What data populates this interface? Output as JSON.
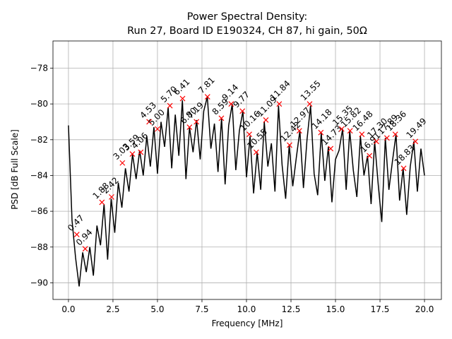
{
  "chart_data": {
    "type": "line",
    "title": "Power Spectral Density:",
    "subtitle": "Run 27, Board ID E190324, CH 87, hi gain, 50Ω",
    "xlabel": "Frequency [MHz]",
    "ylabel": "PSD [dB Full Scale]",
    "color": "#000000",
    "grid": true,
    "xlim": [
      -0.87,
      20.95
    ],
    "ylim": [
      -90.93,
      -76.48
    ],
    "xticks": [
      {
        "value": 0,
        "label": "0.0"
      },
      {
        "value": 2.5,
        "label": "2.5"
      },
      {
        "value": 5,
        "label": "5.0"
      },
      {
        "value": 7.5,
        "label": "7.5"
      },
      {
        "value": 10,
        "label": "10.0"
      },
      {
        "value": 12.5,
        "label": "12.5"
      },
      {
        "value": 15,
        "label": "15.0"
      },
      {
        "value": 17.5,
        "label": "17.5"
      },
      {
        "value": 20,
        "label": "20.0"
      }
    ],
    "yticks": [
      {
        "value": -90,
        "label": "−90"
      },
      {
        "value": -88,
        "label": "−88"
      },
      {
        "value": -86,
        "label": "−86"
      },
      {
        "value": -84,
        "label": "−84"
      },
      {
        "value": -82,
        "label": "−82"
      },
      {
        "value": -80,
        "label": "−80"
      },
      {
        "value": -78,
        "label": "−78"
      }
    ],
    "x": [
      0,
      0.2,
      0.4,
      0.6,
      0.8,
      1,
      1.2,
      1.4,
      1.6,
      1.8,
      2,
      2.2,
      2.4,
      2.6,
      2.8,
      3,
      3.2,
      3.4,
      3.6,
      3.8,
      4,
      4.2,
      4.4,
      4.6,
      4.8,
      5,
      5.2,
      5.4,
      5.6,
      5.8,
      6,
      6.2,
      6.4,
      6.6,
      6.8,
      7,
      7.2,
      7.4,
      7.6,
      7.8,
      8,
      8.2,
      8.4,
      8.6,
      8.8,
      9,
      9.2,
      9.4,
      9.6,
      9.8,
      10,
      10.2,
      10.4,
      10.6,
      10.8,
      11,
      11.2,
      11.4,
      11.6,
      11.8,
      12,
      12.2,
      12.4,
      12.6,
      12.8,
      13,
      13.2,
      13.4,
      13.6,
      13.8,
      14,
      14.2,
      14.4,
      14.6,
      14.8,
      15,
      15.2,
      15.4,
      15.6,
      15.8,
      16,
      16.2,
      16.4,
      16.6,
      16.8,
      17,
      17.2,
      17.4,
      17.6,
      17.8,
      18,
      18.2,
      18.4,
      18.6,
      18.8,
      19,
      19.2,
      19.4,
      19.6,
      19.8,
      20
    ],
    "values": [
      -81.2,
      -86.5,
      -88.6,
      -90.2,
      -88.3,
      -89.4,
      -88.0,
      -89.6,
      -86.8,
      -87.9,
      -85.6,
      -88.7,
      -85.3,
      -87.2,
      -84.4,
      -85.8,
      -83.6,
      -84.9,
      -82.8,
      -84.2,
      -82.6,
      -84.0,
      -81.8,
      -83.5,
      -81.3,
      -83.9,
      -81.0,
      -82.4,
      -80.2,
      -83.6,
      -80.6,
      -82.9,
      -79.8,
      -84.2,
      -81.3,
      -82.7,
      -80.9,
      -83.1,
      -80.4,
      -79.6,
      -82.5,
      -81.1,
      -83.8,
      -80.8,
      -84.5,
      -81.2,
      -80.0,
      -83.7,
      -81.5,
      -80.4,
      -84.1,
      -81.8,
      -85.0,
      -82.7,
      -84.8,
      -81.0,
      -83.5,
      -82.2,
      -84.9,
      -80.1,
      -83.4,
      -85.3,
      -82.3,
      -84.6,
      -83.0,
      -81.5,
      -84.7,
      -82.0,
      -80.1,
      -83.9,
      -85.1,
      -81.6,
      -84.3,
      -82.4,
      -85.5,
      -83.1,
      -82.6,
      -81.4,
      -84.8,
      -81.5,
      -83.7,
      -85.2,
      -81.8,
      -84.0,
      -82.9,
      -85.6,
      -82.1,
      -84.5,
      -86.6,
      -81.9,
      -84.8,
      -83.2,
      -81.7,
      -85.4,
      -83.6,
      -86.2,
      -83.5,
      -82.1,
      -84.9,
      -82.5,
      -84.0
    ],
    "peaks": {
      "color": "#ff0000",
      "x": [
        0.47,
        0.94,
        1.88,
        2.42,
        3.03,
        3.59,
        4.06,
        4.53,
        5.0,
        5.7,
        6.41,
        6.8,
        7.19,
        7.81,
        8.59,
        9.14,
        9.77,
        10.16,
        10.55,
        11.09,
        11.84,
        12.42,
        12.97,
        13.55,
        14.18,
        14.73,
        15.35,
        15.82,
        16.48,
        16.91,
        17.3,
        17.89,
        18.36,
        18.83,
        19.49
      ],
      "x_labels": [
        "0.47",
        "0.94",
        "1.88",
        "2.42",
        "3.03",
        "3.59",
        "4.06",
        "4.53",
        "5.00",
        "5.70",
        "6.41",
        "6.80",
        "7.19",
        "7.81",
        "8.59",
        "9.14",
        "9.77",
        "10.16",
        "10.55",
        "11.09",
        "11.84",
        "12.42",
        "12.97",
        "13.55",
        "14.18",
        "14.73",
        "15.35",
        "15.82",
        "16.48",
        "16.91",
        "17.30",
        "17.89",
        "18.36",
        "18.83",
        "19.49"
      ],
      "values": [
        -87.3,
        -88.1,
        -85.5,
        -85.2,
        -83.3,
        -82.8,
        -82.7,
        -81.0,
        -81.4,
        -80.1,
        -79.7,
        -81.3,
        -81.0,
        -79.6,
        -80.8,
        -80.0,
        -80.4,
        -81.7,
        -82.7,
        -80.9,
        -80.0,
        -82.3,
        -81.5,
        -80.0,
        -81.6,
        -82.5,
        -81.4,
        -81.5,
        -81.7,
        -82.9,
        -82.1,
        -81.9,
        -81.7,
        -83.6,
        -82.1
      ]
    }
  }
}
